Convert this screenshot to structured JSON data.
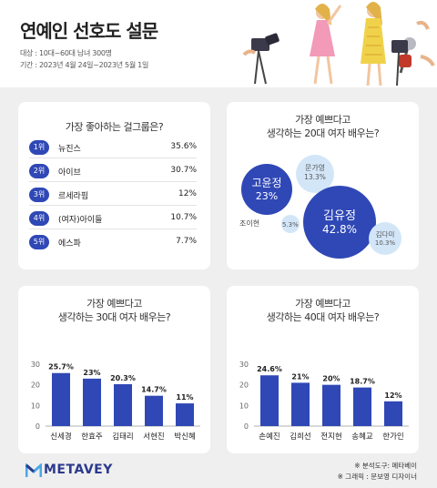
{
  "header": {
    "title": "연예인 선호도 설문",
    "target": "대상 : 10대~60대 남녀 300명",
    "period": "기간 : 2023년 4월 24일~2023년 5월 1일"
  },
  "colors": {
    "accent": "#2f48b6",
    "bubble_light": "#d3e6f8",
    "bar": "#2f48b6"
  },
  "chart_data": [
    {
      "type": "table",
      "title": "가장 좋아하는 걸그룹은?",
      "rows": [
        {
          "rank": "1위",
          "name": "뉴진스",
          "value": "35.6%"
        },
        {
          "rank": "2위",
          "name": "아이브",
          "value": "30.7%"
        },
        {
          "rank": "3위",
          "name": "르세라핌",
          "value": "12%"
        },
        {
          "rank": "4위",
          "name": "(여자)아이들",
          "value": "10.7%"
        },
        {
          "rank": "5위",
          "name": "에스파",
          "value": "7.7%"
        }
      ]
    },
    {
      "type": "bubble",
      "title_line1": "가장 예쁘다고",
      "title_line2": "생각하는 20대 여자 배우는?",
      "items": [
        {
          "name": "고윤정",
          "value": 23,
          "label": "23%"
        },
        {
          "name": "문가영",
          "value": 13.3,
          "label": "13.3%"
        },
        {
          "name": "김유정",
          "value": 42.8,
          "label": "42.8%"
        },
        {
          "name": "조이현",
          "value": 5.3,
          "label": "5.3%"
        },
        {
          "name": "김다미",
          "value": 10.3,
          "label": "10.3%"
        }
      ]
    },
    {
      "type": "bar",
      "title_line1": "가장 예쁘다고",
      "title_line2": "생각하는 30대 여자 배우는?",
      "categories": [
        "신세경",
        "한효주",
        "김태리",
        "서현진",
        "박신혜"
      ],
      "values": [
        25.7,
        23,
        20.3,
        14.7,
        11
      ],
      "labels": [
        "25.7%",
        "23%",
        "20.3%",
        "14.7%",
        "11%"
      ],
      "yticks": [
        "0",
        "10",
        "20",
        "30"
      ],
      "ylim": [
        0,
        30
      ]
    },
    {
      "type": "bar",
      "title_line1": "가장 예쁘다고",
      "title_line2": "생각하는 40대 여자 배우는?",
      "categories": [
        "손예진",
        "김희선",
        "전지현",
        "송혜교",
        "한가인"
      ],
      "values": [
        24.6,
        21,
        20,
        18.7,
        12
      ],
      "labels": [
        "24.6%",
        "21%",
        "20%",
        "18.7%",
        "12%"
      ],
      "yticks": [
        "0",
        "10",
        "20",
        "30"
      ],
      "ylim": [
        0,
        30
      ]
    }
  ],
  "footer": {
    "logo": "METAVEY",
    "credit_tool": "※ 분석도구: 메타베이",
    "credit_graphic": "※ 그래픽 : 문보영 디자이너"
  }
}
